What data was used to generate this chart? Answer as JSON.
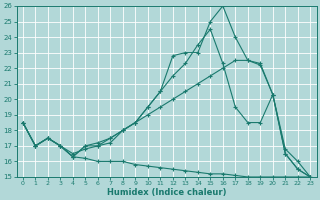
{
  "xlabel": "Humidex (Indice chaleur)",
  "bg_color": "#b2d8d8",
  "grid_color": "#ffffff",
  "line_color": "#1a7a6e",
  "xlim": [
    -0.5,
    23.5
  ],
  "ylim": [
    15,
    26
  ],
  "xticks": [
    0,
    1,
    2,
    3,
    4,
    5,
    6,
    7,
    8,
    9,
    10,
    11,
    12,
    13,
    14,
    15,
    16,
    17,
    18,
    19,
    20,
    21,
    22,
    23
  ],
  "yticks": [
    15,
    16,
    17,
    18,
    19,
    20,
    21,
    22,
    23,
    24,
    25,
    26
  ],
  "series": [
    {
      "x": [
        0,
        1,
        2,
        3,
        4,
        5,
        6,
        7,
        8,
        9,
        10,
        11,
        12,
        13,
        14,
        15,
        16,
        17,
        18,
        19,
        20,
        21,
        22,
        23
      ],
      "y": [
        18.5,
        17.0,
        17.5,
        17.0,
        16.3,
        17.0,
        17.0,
        17.2,
        18.0,
        18.5,
        19.5,
        20.5,
        22.8,
        23.0,
        23.0,
        25.0,
        26.0,
        24.0,
        22.5,
        22.3,
        20.3,
        16.5,
        15.5,
        15.0
      ]
    },
    {
      "x": [
        0,
        1,
        2,
        3,
        4,
        5,
        6,
        7,
        8,
        9,
        10,
        11,
        12,
        13,
        14,
        15,
        16,
        17,
        18,
        19,
        20,
        21,
        22,
        23
      ],
      "y": [
        18.5,
        17.0,
        17.5,
        17.0,
        16.3,
        17.0,
        17.2,
        17.5,
        18.0,
        18.5,
        19.5,
        20.5,
        21.5,
        22.3,
        23.5,
        24.5,
        22.3,
        19.5,
        18.5,
        18.5,
        20.3,
        16.5,
        15.5,
        15.0
      ]
    },
    {
      "x": [
        0,
        1,
        2,
        3,
        4,
        5,
        6,
        7,
        8,
        9,
        10,
        11,
        12,
        13,
        14,
        15,
        16,
        17,
        18,
        19,
        20,
        21,
        22,
        23
      ],
      "y": [
        18.5,
        17.0,
        17.5,
        17.0,
        16.5,
        16.8,
        17.0,
        17.5,
        18.0,
        18.5,
        19.0,
        19.5,
        20.0,
        20.5,
        21.0,
        21.5,
        22.0,
        22.5,
        22.5,
        22.2,
        20.3,
        16.8,
        16.0,
        15.0
      ]
    },
    {
      "x": [
        0,
        1,
        2,
        3,
        4,
        5,
        6,
        7,
        8,
        9,
        10,
        11,
        12,
        13,
        14,
        15,
        16,
        17,
        18,
        19,
        20,
        21,
        22,
        23
      ],
      "y": [
        18.5,
        17.0,
        17.5,
        17.0,
        16.3,
        16.2,
        16.0,
        16.0,
        16.0,
        15.8,
        15.7,
        15.6,
        15.5,
        15.4,
        15.3,
        15.2,
        15.2,
        15.1,
        15.0,
        15.0,
        15.0,
        15.0,
        15.0,
        15.0
      ]
    }
  ]
}
